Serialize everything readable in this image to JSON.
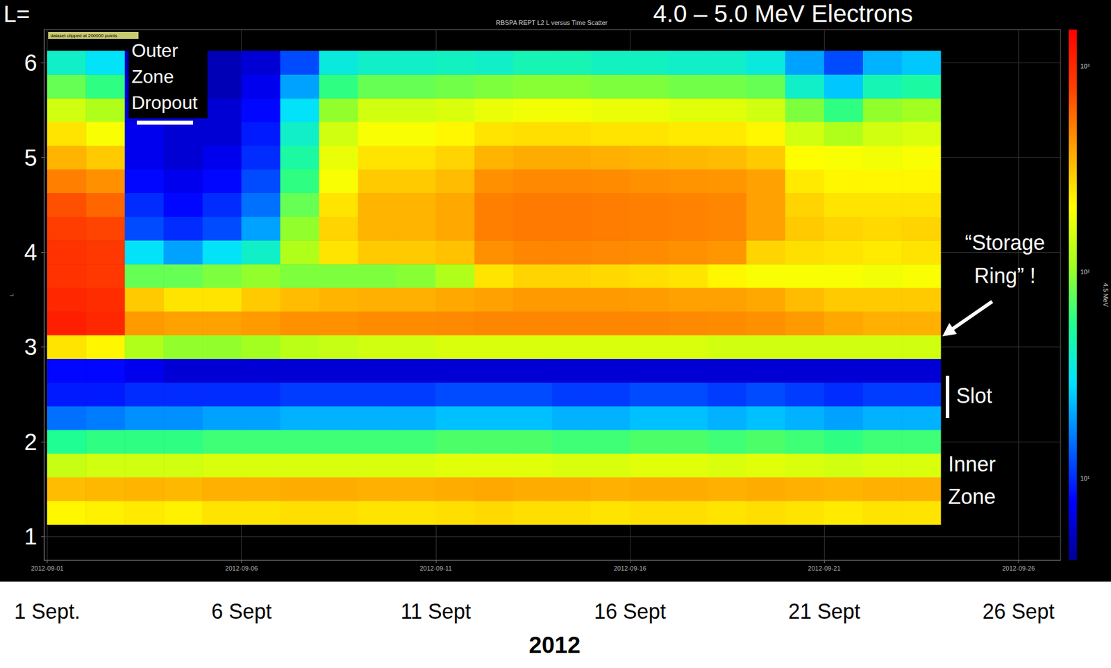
{
  "chart_data": {
    "type": "scatter",
    "title": "4.0 – 5.0 MeV Electrons",
    "subtitle": "RBSPA REPT L2 L versus Time Scatter",
    "corner_label": "L=",
    "y_label": "L",
    "x_label": "2012",
    "xlim": [
      "2012-08-31T22:00",
      "2012-09-27T02:00"
    ],
    "xticks": [
      "2012-09-01",
      "2012-09-06",
      "2012-09-11",
      "2012-09-16",
      "2012-09-21",
      "2012-09-26"
    ],
    "x_tick_labels": [
      "1 Sept.",
      "6 Sept",
      "11 Sept",
      "16 Sept",
      "21 Sept",
      "26 Sept"
    ],
    "ylim": [
      0.75,
      6.35
    ],
    "yticks": [
      1,
      2,
      3,
      4,
      5,
      6
    ],
    "grid": true,
    "x": [
      "2012-09-01T12:00",
      "2012-09-02T12:00",
      "2012-09-03T12:00",
      "2012-09-04T12:00",
      "2012-09-05T12:00",
      "2012-09-06T12:00",
      "2012-09-07T12:00",
      "2012-09-08T12:00",
      "2012-09-09T12:00",
      "2012-09-10T12:00",
      "2012-09-11T12:00",
      "2012-09-12T12:00",
      "2012-09-13T12:00",
      "2012-09-14T12:00",
      "2012-09-15T12:00",
      "2012-09-16T12:00",
      "2012-09-17T12:00",
      "2012-09-18T12:00",
      "2012-09-19T12:00",
      "2012-09-20T12:00",
      "2012-09-21T12:00",
      "2012-09-22T12:00",
      "2012-09-23T12:00"
    ],
    "L": [
      1.25,
      1.5,
      1.75,
      2.0,
      2.25,
      2.5,
      2.75,
      3.0,
      3.25,
      3.5,
      3.75,
      4.0,
      4.25,
      4.5,
      4.75,
      5.0,
      5.25,
      5.5,
      5.75,
      6.0
    ],
    "flux": [
      [
        220,
        230,
        240,
        230,
        250,
        250,
        260,
        260,
        250,
        250,
        260,
        270,
        260,
        260,
        250,
        260,
        260,
        250,
        260,
        250,
        240,
        250,
        250
      ],
      [
        330,
        340,
        350,
        340,
        360,
        360,
        370,
        370,
        360,
        360,
        370,
        380,
        370,
        370,
        360,
        370,
        370,
        360,
        370,
        360,
        350,
        360,
        360
      ],
      [
        140,
        150,
        150,
        150,
        160,
        160,
        160,
        160,
        160,
        160,
        170,
        170,
        170,
        160,
        160,
        170,
        170,
        160,
        170,
        160,
        150,
        160,
        160
      ],
      [
        55,
        60,
        60,
        60,
        65,
        65,
        65,
        65,
        65,
        65,
        70,
        70,
        70,
        65,
        65,
        70,
        70,
        65,
        70,
        65,
        60,
        65,
        65
      ],
      [
        15,
        16,
        18,
        18,
        20,
        20,
        22,
        22,
        22,
        22,
        24,
        24,
        24,
        22,
        22,
        24,
        24,
        22,
        24,
        22,
        20,
        22,
        22
      ],
      [
        9,
        9,
        10,
        10,
        10,
        10,
        11,
        11,
        11,
        11,
        12,
        12,
        12,
        11,
        11,
        12,
        12,
        11,
        12,
        11,
        10,
        11,
        11
      ],
      [
        8,
        8,
        7,
        6,
        6,
        6,
        6,
        6,
        6,
        6,
        6,
        6,
        6,
        6,
        6,
        6,
        6,
        6,
        6,
        6,
        6,
        6,
        6
      ],
      [
        250,
        220,
        120,
        100,
        100,
        110,
        130,
        140,
        150,
        150,
        160,
        160,
        160,
        160,
        160,
        160,
        160,
        150,
        150,
        150,
        150,
        150,
        150
      ],
      [
        1100,
        1000,
        420,
        400,
        400,
        420,
        450,
        450,
        460,
        460,
        470,
        480,
        480,
        480,
        480,
        480,
        470,
        460,
        450,
        420,
        380,
        360,
        360
      ],
      [
        1000,
        950,
        300,
        250,
        250,
        300,
        330,
        350,
        360,
        360,
        380,
        400,
        420,
        420,
        420,
        410,
        400,
        400,
        380,
        330,
        300,
        300,
        300
      ],
      [
        900,
        850,
        80,
        80,
        90,
        100,
        90,
        90,
        90,
        95,
        120,
        250,
        280,
        280,
        270,
        260,
        250,
        220,
        200,
        200,
        200,
        190,
        200
      ],
      [
        900,
        850,
        30,
        20,
        30,
        40,
        120,
        250,
        300,
        300,
        320,
        450,
        480,
        480,
        470,
        460,
        450,
        430,
        280,
        260,
        250,
        240,
        250
      ],
      [
        800,
        760,
        12,
        10,
        12,
        20,
        100,
        280,
        350,
        350,
        380,
        500,
        520,
        520,
        510,
        500,
        490,
        480,
        400,
        300,
        280,
        270,
        280
      ],
      [
        700,
        600,
        10,
        8,
        10,
        15,
        80,
        250,
        350,
        350,
        380,
        500,
        520,
        520,
        510,
        500,
        490,
        480,
        400,
        280,
        250,
        250,
        250
      ],
      [
        500,
        450,
        8,
        7,
        8,
        12,
        60,
        200,
        300,
        300,
        330,
        450,
        470,
        470,
        460,
        450,
        440,
        430,
        400,
        240,
        220,
        220,
        220
      ],
      [
        350,
        300,
        7,
        6,
        7,
        10,
        50,
        180,
        250,
        250,
        280,
        350,
        370,
        370,
        360,
        350,
        340,
        330,
        300,
        210,
        200,
        190,
        200
      ],
      [
        250,
        200,
        7,
        6,
        6,
        9,
        40,
        150,
        200,
        200,
        220,
        250,
        260,
        260,
        250,
        250,
        240,
        240,
        220,
        150,
        120,
        150,
        160
      ],
      [
        150,
        120,
        6,
        6,
        6,
        8,
        30,
        100,
        150,
        150,
        160,
        180,
        190,
        190,
        180,
        180,
        170,
        170,
        150,
        90,
        60,
        100,
        110
      ],
      [
        80,
        60,
        6,
        5,
        5,
        7,
        20,
        60,
        80,
        80,
        85,
        90,
        95,
        95,
        90,
        90,
        85,
        85,
        80,
        40,
        25,
        45,
        50
      ],
      [
        40,
        30,
        5,
        5,
        5,
        6,
        12,
        35,
        40,
        40,
        42,
        40,
        45,
        45,
        42,
        42,
        40,
        40,
        35,
        20,
        12,
        22,
        25
      ]
    ],
    "colorbar": {
      "label": "4.5 MeV",
      "range": [
        4,
        1500
      ],
      "ticks": [
        {
          "value": 10,
          "label": "10¹"
        },
        {
          "value": 100,
          "label": "10²"
        },
        {
          "value": 1000,
          "label": "10³"
        }
      ]
    },
    "annotations": [
      "Outer Zone Dropout",
      "“Storage Ring” !",
      "Slot",
      "Inner Zone",
      "dataset clipped at 200000 points"
    ]
  }
}
